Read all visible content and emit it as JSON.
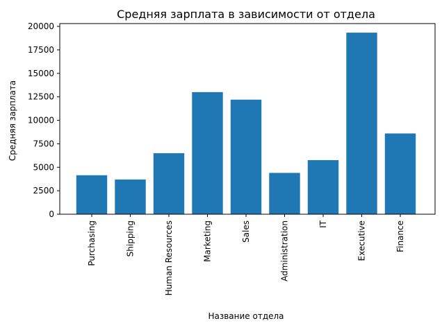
{
  "chart_data": {
    "type": "bar",
    "title": "Средняя зарплата в зависимости от отдела",
    "xlabel": "Название отдела",
    "ylabel": "Средняя зарплата",
    "categories": [
      "Purchasing",
      "Shipping",
      "Human Resources",
      "Marketing",
      "Sales",
      "Administration",
      "IT",
      "Executive",
      "Finance"
    ],
    "values": [
      4150,
      3700,
      6500,
      13000,
      12200,
      4400,
      5760,
      19333,
      8600
    ],
    "ylim": [
      0,
      20300
    ],
    "yticks": [
      0,
      2500,
      5000,
      7500,
      10000,
      12500,
      15000,
      17500,
      20000
    ],
    "ytick_labels": [
      "0",
      "2500",
      "5000",
      "7500",
      "10000",
      "12500",
      "15000",
      "17500",
      "20000"
    ],
    "bar_color": "#1f77b4",
    "grid": false,
    "legend": "none"
  }
}
